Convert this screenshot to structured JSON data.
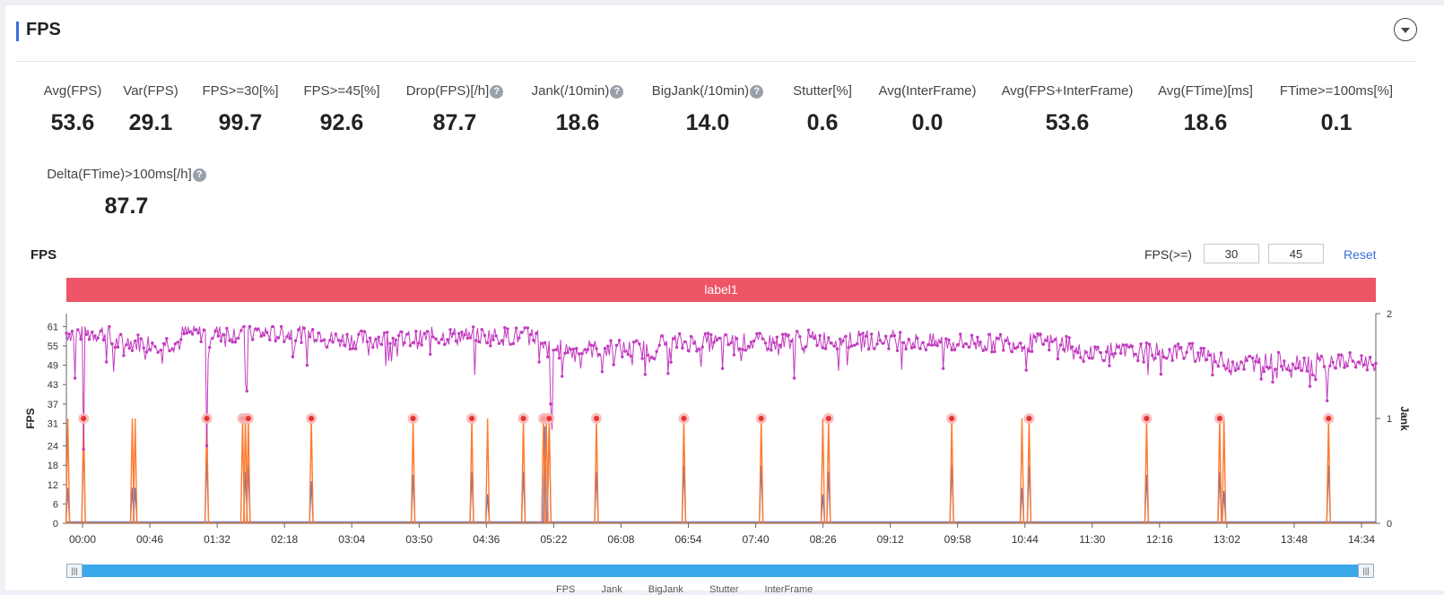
{
  "header": {
    "title": "FPS"
  },
  "metrics": [
    {
      "label": "Avg(FPS)",
      "value": "53.6",
      "help": false
    },
    {
      "label": "Var(FPS)",
      "value": "29.1",
      "help": false
    },
    {
      "label": "FPS>=30[%]",
      "value": "99.7",
      "help": false
    },
    {
      "label": "FPS>=45[%]",
      "value": "92.6",
      "help": false
    },
    {
      "label": "Drop(FPS)[/h]",
      "value": "87.7",
      "help": true
    },
    {
      "label": "Jank(/10min)",
      "value": "18.6",
      "help": true
    },
    {
      "label": "BigJank(/10min)",
      "value": "14.0",
      "help": true
    },
    {
      "label": "Stutter[%]",
      "value": "0.6",
      "help": false
    },
    {
      "label": "Avg(InterFrame)",
      "value": "0.0",
      "help": false
    },
    {
      "label": "Avg(FPS+InterFrame)",
      "value": "53.6",
      "help": false
    },
    {
      "label": "Avg(FTime)[ms]",
      "value": "18.6",
      "help": false
    },
    {
      "label": "FTime>=100ms[%]",
      "value": "0.1",
      "help": false
    },
    {
      "label": "Delta(FTime)>100ms[/h]",
      "value": "87.7",
      "help": true
    }
  ],
  "chart_section": {
    "title": "FPS",
    "filter_label": "FPS(>=)",
    "threshold_low": "30",
    "threshold_high": "45",
    "reset_label": "Reset",
    "band_label": "label1",
    "help_glyph": "?",
    "slider_glyph": "|||"
  },
  "legend": [
    "FPS",
    "Jank",
    "BigJank",
    "Stutter",
    "InterFrame"
  ],
  "colors": {
    "fps": "#c23bbf",
    "jank": "#ff7a2f",
    "bigjank_marker": "#e8322e",
    "bigjank_halo": "#f6b6b6",
    "stutter": "#5b74d6",
    "band": "#ee5566",
    "accent": "#3b6fd8"
  },
  "chart_data": {
    "type": "line",
    "ylabel": "FPS",
    "y2label": "Jank",
    "yticks": [
      0,
      6,
      12,
      18,
      24,
      31,
      37,
      43,
      49,
      55,
      61
    ],
    "y2ticks": [
      0,
      1,
      2
    ],
    "ylim": [
      0,
      65
    ],
    "y2lim": [
      0,
      2
    ],
    "xticks": [
      "00:00",
      "00:46",
      "01:32",
      "02:18",
      "03:04",
      "03:50",
      "04:36",
      "05:22",
      "06:08",
      "06:54",
      "07:40",
      "08:26",
      "09:12",
      "09:58",
      "10:44",
      "11:30",
      "12:16",
      "13:02",
      "13:48",
      "14:34"
    ],
    "duration_s": 914,
    "fps_segments": [
      {
        "t": [
          0,
          30
        ],
        "level": 59
      },
      {
        "t": [
          30,
          80
        ],
        "level": 56
      },
      {
        "t": [
          80,
          180
        ],
        "level": 59
      },
      {
        "t": [
          180,
          250
        ],
        "level": 57
      },
      {
        "t": [
          250,
          330
        ],
        "level": 58
      },
      {
        "t": [
          330,
          410
        ],
        "level": 54
      },
      {
        "t": [
          410,
          500
        ],
        "level": 56
      },
      {
        "t": [
          500,
          590
        ],
        "level": 57
      },
      {
        "t": [
          590,
          700
        ],
        "level": 56
      },
      {
        "t": [
          700,
          800
        ],
        "level": 53
      },
      {
        "t": [
          800,
          914
        ],
        "level": 50
      }
    ],
    "fps_dips": [
      {
        "t": 6,
        "value": 45
      },
      {
        "t": 12,
        "value": 23
      },
      {
        "t": 28,
        "value": 50
      },
      {
        "t": 33,
        "value": 47
      },
      {
        "t": 98,
        "value": 24
      },
      {
        "t": 125,
        "value": 43
      },
      {
        "t": 126,
        "value": 41
      },
      {
        "t": 168,
        "value": 49
      },
      {
        "t": 211,
        "value": 52
      },
      {
        "t": 285,
        "value": 46
      },
      {
        "t": 330,
        "value": 50
      },
      {
        "t": 338,
        "value": 37
      },
      {
        "t": 339,
        "value": 29
      },
      {
        "t": 355,
        "value": 50
      },
      {
        "t": 374,
        "value": 47
      },
      {
        "t": 407,
        "value": 50
      },
      {
        "t": 458,
        "value": 48
      },
      {
        "t": 508,
        "value": 45
      },
      {
        "t": 545,
        "value": 49
      },
      {
        "t": 612,
        "value": 48
      },
      {
        "t": 755,
        "value": 46
      },
      {
        "t": 800,
        "value": 46
      },
      {
        "t": 870,
        "value": 46
      },
      {
        "t": 880,
        "value": 38
      }
    ],
    "jank_events": [
      1,
      12,
      46,
      48,
      98,
      123,
      125,
      127,
      171,
      242,
      283,
      294,
      319,
      333,
      335,
      337,
      370,
      431,
      485,
      528,
      532,
      618,
      667,
      672,
      754,
      805,
      808,
      881
    ],
    "bigjank_events": [
      12,
      98,
      123,
      125,
      127,
      171,
      242,
      283,
      319,
      333,
      335,
      337,
      370,
      431,
      485,
      532,
      618,
      672,
      754,
      805,
      881
    ],
    "stutter_events": [
      {
        "t": 1,
        "value": 11
      },
      {
        "t": 12,
        "value": 25
      },
      {
        "t": 46,
        "value": 11
      },
      {
        "t": 48,
        "value": 11
      },
      {
        "t": 98,
        "value": 20
      },
      {
        "t": 125,
        "value": 16
      },
      {
        "t": 127,
        "value": 18
      },
      {
        "t": 171,
        "value": 13
      },
      {
        "t": 242,
        "value": 15
      },
      {
        "t": 283,
        "value": 16
      },
      {
        "t": 294,
        "value": 9
      },
      {
        "t": 319,
        "value": 16
      },
      {
        "t": 334,
        "value": 30
      },
      {
        "t": 337,
        "value": 33
      },
      {
        "t": 370,
        "value": 16
      },
      {
        "t": 431,
        "value": 18
      },
      {
        "t": 485,
        "value": 18
      },
      {
        "t": 528,
        "value": 9
      },
      {
        "t": 532,
        "value": 16
      },
      {
        "t": 618,
        "value": 18
      },
      {
        "t": 667,
        "value": 11
      },
      {
        "t": 672,
        "value": 18
      },
      {
        "t": 754,
        "value": 15
      },
      {
        "t": 805,
        "value": 16
      },
      {
        "t": 808,
        "value": 10
      },
      {
        "t": 881,
        "value": 18
      }
    ],
    "grid": false,
    "legend_position": "bottom"
  }
}
